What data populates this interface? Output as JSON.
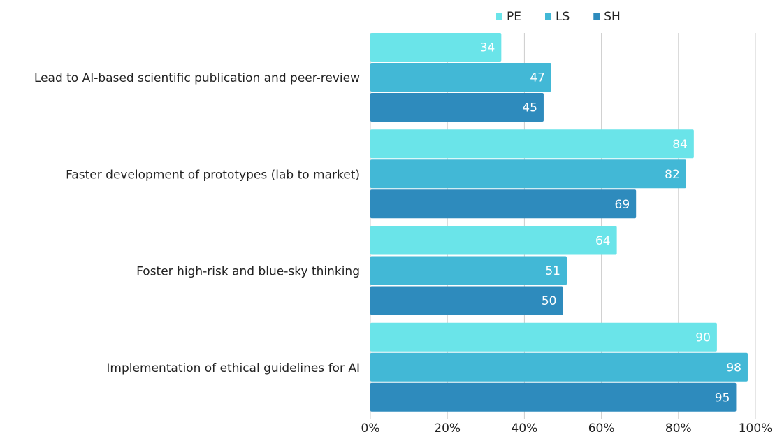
{
  "chart_data": {
    "type": "bar",
    "orientation": "horizontal",
    "categories": [
      "Lead to AI-based scientific publication and peer-review",
      "Faster development of prototypes (lab to market)",
      "Foster high-risk and blue-sky thinking",
      "Implementation of ethical guidelines for AI"
    ],
    "series": [
      {
        "name": "PE",
        "color": "#6ae4e9",
        "values": [
          34,
          84,
          64,
          90
        ]
      },
      {
        "name": "LS",
        "color": "#42b8d6",
        "values": [
          47,
          82,
          51,
          98
        ]
      },
      {
        "name": "SH",
        "color": "#2e8bbd",
        "values": [
          45,
          69,
          50,
          95
        ]
      }
    ],
    "xlim": [
      0,
      100
    ],
    "xticks": [
      {
        "value": 0,
        "label": "0%"
      },
      {
        "value": 20,
        "label": "20%"
      },
      {
        "value": 40,
        "label": "40%"
      },
      {
        "value": 60,
        "label": "60%"
      },
      {
        "value": 80,
        "label": "80%"
      },
      {
        "value": 100,
        "label": "100%"
      }
    ],
    "grid": true,
    "legend": "top"
  }
}
